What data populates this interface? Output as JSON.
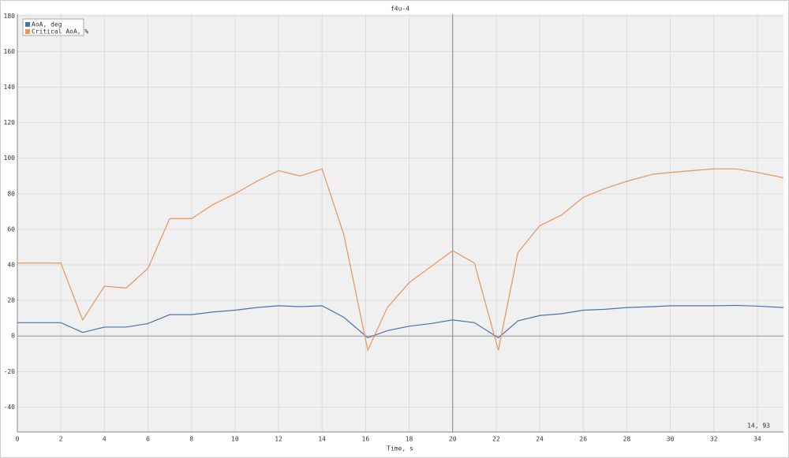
{
  "chart_data": {
    "type": "line",
    "title": "f4u-4",
    "x_label": "Time, s",
    "x": [
      0,
      2,
      3,
      4,
      5,
      6,
      7,
      8,
      9,
      10,
      11,
      12,
      13,
      14,
      15,
      16.1,
      17,
      18,
      19,
      20,
      21,
      22.1,
      23,
      24,
      25,
      26,
      27,
      28,
      29.2,
      30,
      31,
      32,
      33,
      34,
      35.2
    ],
    "series": [
      {
        "name": "AoA, deg",
        "color": "#4c72b0",
        "values": [
          7.5,
          7.5,
          2,
          5,
          5,
          7,
          12,
          12,
          13.5,
          14.5,
          16,
          17,
          16.5,
          17,
          10.5,
          -1,
          3,
          5.5,
          7,
          9,
          7.5,
          -1,
          8.5,
          11.5,
          12.5,
          14.5,
          15,
          16,
          16.5,
          17,
          17,
          17,
          17.2,
          16.8,
          16
        ]
      },
      {
        "name": "Critical AoA, %",
        "color": "#e8945a",
        "values": [
          41,
          41,
          9,
          28,
          27,
          38,
          66,
          66,
          74,
          80,
          87,
          93,
          90,
          94,
          57,
          -8,
          16,
          30,
          39,
          48,
          41,
          -8,
          47,
          62,
          68,
          78,
          83,
          87,
          91,
          92,
          93,
          94,
          94,
          92,
          89
        ]
      }
    ],
    "xlim": [
      0,
      35.2
    ],
    "ylim": [
      -54,
      181
    ],
    "xticks": [
      0,
      2,
      4,
      6,
      8,
      10,
      12,
      14,
      16,
      18,
      20,
      22,
      24,
      26,
      28,
      30,
      32,
      34
    ],
    "yticks": [
      -40,
      -20,
      0,
      20,
      40,
      60,
      80,
      100,
      120,
      140,
      160,
      180
    ],
    "grid": true,
    "legend": "top-left",
    "crosshair_x": 20,
    "annotation": "14, 93"
  }
}
